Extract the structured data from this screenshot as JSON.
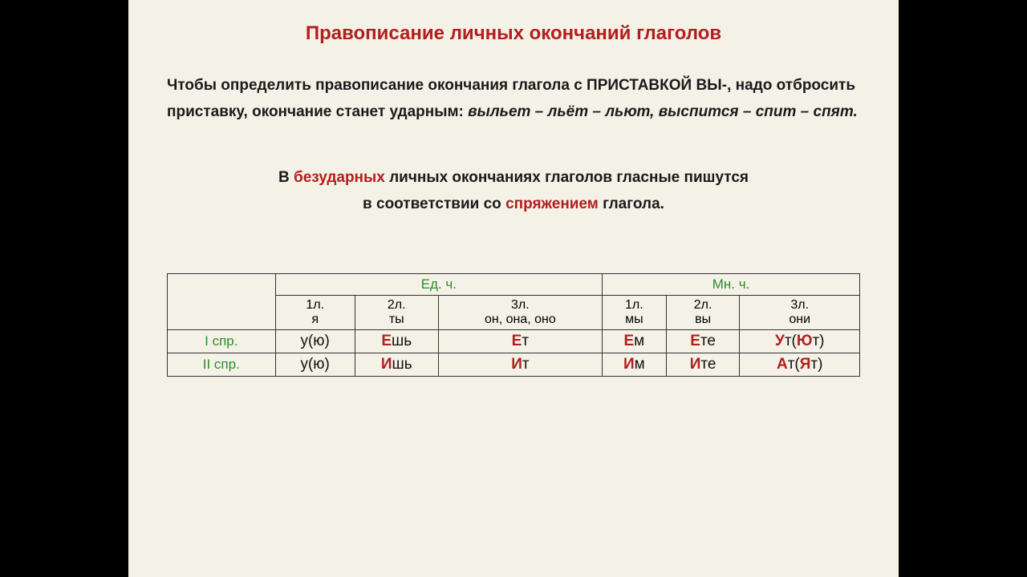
{
  "title": "Правописание личных окончаний глаголов",
  "para_part1": "Чтобы определить правописание окончания глагола с ПРИСТАВКОЙ ВЫ-, надо отбросить приставку, окончание станет ударным: ",
  "para_italic": "выльет – льёт – льют, выспится – спит – спят.",
  "rule_p1": "В ",
  "rule_a1": "безударных",
  "rule_p2": " личных окончаниях глаголов гласные пишутся",
  "rule_p3": "в соответствии со ",
  "rule_a2": "спряжением",
  "rule_p4": " глагола.",
  "table": {
    "group_sg": "Ед. ч.",
    "group_pl": "Мн. ч.",
    "persons": [
      "1л.",
      "2л.",
      "3л.",
      "1л.",
      "2л.",
      "3л."
    ],
    "pronouns": [
      "я",
      "ты",
      "он, она, оно",
      "мы",
      "вы",
      "они"
    ],
    "rows": [
      {
        "label": "I спр.",
        "cells": [
          {
            "pre": "",
            "hl": "",
            "mid": "у(ю)",
            "hl2": "",
            "post": ""
          },
          {
            "pre": "",
            "hl": "Е",
            "mid": "шь",
            "hl2": "",
            "post": ""
          },
          {
            "pre": "",
            "hl": "Е",
            "mid": "т",
            "hl2": "",
            "post": ""
          },
          {
            "pre": "",
            "hl": "Е",
            "mid": "м",
            "hl2": "",
            "post": ""
          },
          {
            "pre": "",
            "hl": "Е",
            "mid": "те",
            "hl2": "",
            "post": ""
          },
          {
            "pre": "",
            "hl": "У",
            "mid": "т(",
            "hl2": "Ю",
            "post": "т)"
          }
        ]
      },
      {
        "label": "II спр.",
        "cells": [
          {
            "pre": "",
            "hl": "",
            "mid": "у(ю)",
            "hl2": "",
            "post": ""
          },
          {
            "pre": "",
            "hl": "И",
            "mid": "шь",
            "hl2": "",
            "post": ""
          },
          {
            "pre": "",
            "hl": "И",
            "mid": "т",
            "hl2": "",
            "post": ""
          },
          {
            "pre": "",
            "hl": "И",
            "mid": "м",
            "hl2": "",
            "post": ""
          },
          {
            "pre": "",
            "hl": "И",
            "mid": "те",
            "hl2": "",
            "post": ""
          },
          {
            "pre": "",
            "hl": "А",
            "mid": "т(",
            "hl2": "Я",
            "post": "т)"
          }
        ]
      }
    ]
  },
  "colors": {
    "background": "#f4f1e6",
    "title": "#b21e1e",
    "accent": "#b21e1e",
    "green": "#2e8b2e",
    "text": "#1a1a1a",
    "border": "#333333"
  }
}
